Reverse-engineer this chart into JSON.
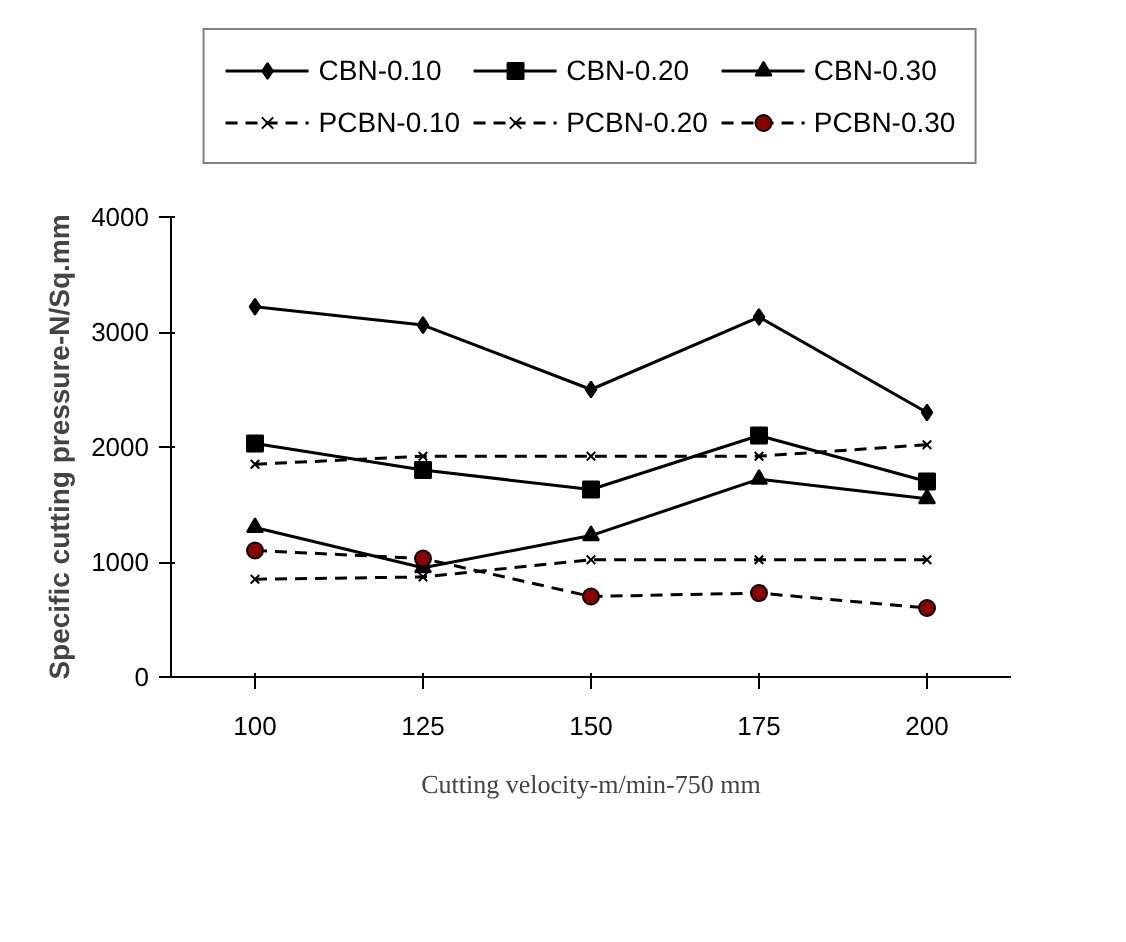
{
  "chart_data": {
    "type": "line",
    "xlabel": "Cutting velocity-m/min-750 mm",
    "ylabel": "Specific cutting pressure-N/Sq.mm",
    "categories": [
      "100",
      "125",
      "150",
      "175",
      "200"
    ],
    "ylim": [
      0,
      4000
    ],
    "yticks": [
      0,
      1000,
      2000,
      3000,
      4000
    ],
    "grid": false,
    "legend": "top",
    "series": [
      {
        "name": "CBN-0.10",
        "color": "#000000",
        "marker": "diamond",
        "line_style": "solid",
        "values": [
          3220,
          3060,
          2500,
          3130,
          2300
        ]
      },
      {
        "name": "CBN-0.20",
        "color": "#000000",
        "marker": "square",
        "line_style": "solid",
        "values": [
          2030,
          1800,
          1630,
          2100,
          1700
        ]
      },
      {
        "name": "CBN-0.30",
        "color": "#000000",
        "marker": "triangle",
        "line_style": "solid",
        "values": [
          1300,
          950,
          1230,
          1720,
          1550
        ]
      },
      {
        "name": "PCBN-0.10",
        "color": "#000000",
        "marker": "cross",
        "line_style": "dashed",
        "values": [
          1850,
          1920,
          1920,
          1920,
          2020
        ]
      },
      {
        "name": "PCBN-0.20",
        "color": "#000000",
        "marker": "cross",
        "line_style": "dashed",
        "values": [
          850,
          870,
          1020,
          1020,
          1020
        ]
      },
      {
        "name": "PCBN-0.30",
        "color": "#8b0000",
        "marker": "circle",
        "line_style": "dashed",
        "values": [
          1100,
          1030,
          700,
          730,
          600
        ]
      }
    ]
  }
}
